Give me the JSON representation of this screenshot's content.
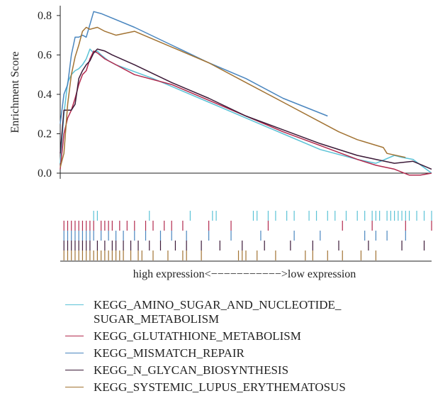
{
  "chart_data": {
    "type": "line",
    "title": "",
    "xlabel": "",
    "ylabel": "Enrichment Score",
    "ylim": [
      0.0,
      0.85
    ],
    "yticks": [
      "0.0",
      "0.2",
      "0.4",
      "0.6",
      "0.8"
    ],
    "expression_label": "high expression<−−−−−−−−−−−>low expression",
    "legend_placement": "bottom",
    "grid": false,
    "series": [
      {
        "name": "KEGG_AMINO_SUGAR_AND_NUCLEOTIDE_\nSUGAR_METABOLISM",
        "color": "#5bc2d6",
        "x": [
          0,
          1,
          2,
          3,
          4,
          5,
          6,
          7,
          8,
          9,
          10,
          11,
          13,
          15,
          25,
          40,
          50,
          60,
          70,
          80,
          85,
          90,
          92,
          95,
          100
        ],
        "y": [
          0.05,
          0.3,
          0.46,
          0.5,
          0.52,
          0.53,
          0.55,
          0.58,
          0.63,
          0.61,
          0.62,
          0.6,
          0.57,
          0.55,
          0.48,
          0.36,
          0.28,
          0.2,
          0.12,
          0.07,
          0.05,
          0.09,
          0.08,
          0.07,
          0.0
        ]
      },
      {
        "name": "KEGG_GLUTATHIONE_METABOLISM",
        "color": "#b22a4e",
        "x": [
          0,
          1,
          2,
          3,
          4,
          5,
          6,
          7,
          8,
          9,
          10,
          12,
          14,
          20,
          30,
          40,
          50,
          60,
          70,
          80,
          85,
          90,
          94,
          97,
          100
        ],
        "y": [
          0.02,
          0.2,
          0.28,
          0.32,
          0.38,
          0.45,
          0.5,
          0.52,
          0.58,
          0.62,
          0.61,
          0.58,
          0.56,
          0.5,
          0.45,
          0.37,
          0.29,
          0.21,
          0.14,
          0.07,
          0.04,
          0.02,
          -0.01,
          -0.01,
          0.0
        ]
      },
      {
        "name": "KEGG_MISMATCH_REPAIR",
        "color": "#4a86bf",
        "x": [
          0,
          1,
          2,
          3,
          4,
          5,
          6,
          7,
          9,
          11,
          20,
          30,
          40,
          50,
          60,
          72
        ],
        "y": [
          0.25,
          0.4,
          0.45,
          0.6,
          0.69,
          0.69,
          0.7,
          0.69,
          0.82,
          0.81,
          0.74,
          0.65,
          0.56,
          0.48,
          0.38,
          0.29
        ]
      },
      {
        "name": "KEGG_N_GLYCAN_BIOSYNTHESIS",
        "color": "#3c1a38",
        "x": [
          0,
          1,
          2,
          3,
          4,
          5,
          6,
          7,
          8,
          9,
          10,
          12,
          14,
          20,
          30,
          40,
          50,
          60,
          70,
          80,
          85,
          90,
          95,
          100
        ],
        "y": [
          0.1,
          0.32,
          0.32,
          0.32,
          0.35,
          0.48,
          0.52,
          0.55,
          0.57,
          0.61,
          0.63,
          0.62,
          0.6,
          0.55,
          0.46,
          0.38,
          0.29,
          0.22,
          0.15,
          0.09,
          0.07,
          0.05,
          0.06,
          0.02
        ]
      },
      {
        "name": "KEGG_SYSTEMIC_LUPUS_ERYTHEMATOSUS",
        "color": "#a27333",
        "x": [
          0,
          1,
          2,
          3,
          4,
          5,
          6,
          7,
          8,
          10,
          12,
          15,
          20,
          30,
          40,
          50,
          60,
          70,
          75,
          80,
          87,
          88,
          93
        ],
        "y": [
          0.03,
          0.1,
          0.35,
          0.5,
          0.59,
          0.65,
          0.72,
          0.74,
          0.73,
          0.74,
          0.72,
          0.7,
          0.72,
          0.64,
          0.56,
          0.46,
          0.36,
          0.26,
          0.21,
          0.17,
          0.13,
          0.1,
          0.08
        ]
      }
    ],
    "hits": [
      [
        9,
        10,
        24,
        35,
        41,
        42,
        52,
        53,
        56,
        58,
        61,
        63,
        67,
        69,
        72,
        74,
        77,
        80,
        82,
        84,
        85,
        86,
        88,
        89,
        90,
        91,
        92,
        93,
        94,
        96,
        98,
        100
      ],
      [
        1,
        2,
        3,
        4,
        5,
        6,
        7,
        8,
        9,
        11,
        12,
        13,
        14,
        16,
        18,
        20,
        23,
        25,
        28,
        30,
        33,
        40,
        46,
        56,
        76,
        84,
        93,
        100
      ],
      [
        1,
        2,
        3,
        4,
        5,
        6,
        7,
        8,
        9,
        11,
        13,
        15,
        17,
        20,
        23,
        27,
        30,
        34,
        40,
        46,
        54,
        63,
        70,
        82,
        85,
        88,
        93
      ],
      [
        1,
        2,
        3,
        4,
        5,
        6,
        7,
        8,
        10,
        12,
        14,
        15,
        17,
        19,
        21,
        24,
        27,
        31,
        34,
        38,
        43,
        49,
        55,
        62,
        68,
        75,
        83,
        92,
        98
      ],
      [
        1,
        2,
        3,
        4,
        5,
        6,
        7,
        8,
        9,
        10,
        11,
        12,
        13,
        14,
        15,
        16,
        17,
        19,
        21,
        22,
        25,
        29,
        33,
        34,
        38,
        48,
        49,
        50,
        53,
        58,
        66,
        68,
        72,
        76,
        81,
        85
      ]
    ]
  }
}
